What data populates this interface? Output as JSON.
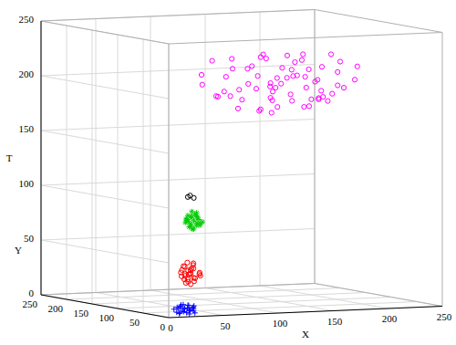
{
  "chart_data": {
    "type": "scatter3d",
    "x_label": "X",
    "y_label": "Y",
    "z_label": "T",
    "xlim": [
      0,
      250
    ],
    "ylim": [
      0,
      250
    ],
    "zlim": [
      0,
      250
    ],
    "xticks": [
      0,
      50,
      100,
      150,
      200,
      250
    ],
    "yticks": [
      0,
      50,
      100,
      150,
      200,
      250
    ],
    "zticks": [
      0,
      50,
      100,
      150,
      200,
      250
    ],
    "grid": true,
    "series": [
      {
        "color": "#0000ff",
        "marker": "plus",
        "values": [
          [
            22,
            18,
            3
          ],
          [
            27,
            21,
            6
          ],
          [
            19,
            25,
            2
          ],
          [
            31,
            17,
            8
          ],
          [
            25,
            12,
            4
          ],
          [
            17,
            20,
            7
          ],
          [
            29,
            27,
            1
          ],
          [
            24,
            23,
            9
          ],
          [
            33,
            22,
            5
          ],
          [
            21,
            14,
            6
          ],
          [
            26,
            29,
            3
          ],
          [
            18,
            16,
            8
          ],
          [
            30,
            13,
            2
          ],
          [
            23,
            26,
            7
          ],
          [
            28,
            19,
            4
          ],
          [
            20,
            22,
            1
          ],
          [
            34,
            25,
            6
          ],
          [
            16,
            24,
            5
          ],
          [
            25,
            16,
            9
          ],
          [
            32,
            20,
            3
          ],
          [
            22,
            28,
            5
          ],
          [
            27,
            11,
            7
          ],
          [
            19,
            19,
            2
          ],
          [
            29,
            23,
            8
          ],
          [
            24,
            20,
            6
          ],
          [
            26,
            15,
            1
          ],
          [
            31,
            26,
            4
          ],
          [
            21,
            21,
            9
          ]
        ]
      },
      {
        "color": "#ff0000",
        "marker": "circle",
        "values": [
          [
            27,
            15,
            38
          ],
          [
            23,
            12,
            33
          ],
          [
            31,
            18,
            42
          ],
          [
            25,
            20,
            29
          ],
          [
            20,
            14,
            45
          ],
          [
            34,
            11,
            36
          ],
          [
            28,
            22,
            40
          ],
          [
            22,
            9,
            31
          ],
          [
            30,
            16,
            47
          ],
          [
            26,
            24,
            35
          ],
          [
            19,
            17,
            39
          ],
          [
            33,
            21,
            30
          ],
          [
            24,
            7,
            43
          ],
          [
            29,
            13,
            34
          ],
          [
            21,
            19,
            41
          ],
          [
            35,
            15,
            37
          ],
          [
            27,
            10,
            46
          ],
          [
            25,
            23,
            32
          ],
          [
            32,
            8,
            39
          ],
          [
            23,
            18,
            44
          ],
          [
            28,
            17,
            28
          ],
          [
            30,
            25,
            36
          ],
          [
            20,
            11,
            38
          ],
          [
            26,
            13,
            41
          ],
          [
            33,
            19,
            33
          ],
          [
            24,
            15,
            48
          ],
          [
            29,
            20,
            37
          ],
          [
            22,
            22,
            35
          ]
        ]
      },
      {
        "color": "#00cc00",
        "marker": "star",
        "values": [
          [
            30,
            15,
            86
          ],
          [
            26,
            12,
            82
          ],
          [
            34,
            18,
            89
          ],
          [
            28,
            20,
            80
          ],
          [
            24,
            14,
            91
          ],
          [
            36,
            11,
            85
          ],
          [
            31,
            22,
            88
          ],
          [
            27,
            9,
            79
          ],
          [
            33,
            16,
            93
          ],
          [
            29,
            19,
            83
          ],
          [
            25,
            17,
            87
          ],
          [
            35,
            21,
            81
          ],
          [
            30,
            8,
            90
          ],
          [
            32,
            13,
            84
          ],
          [
            27,
            23,
            86
          ],
          [
            23,
            15,
            88
          ],
          [
            37,
            17,
            83
          ],
          [
            29,
            11,
            92
          ],
          [
            31,
            20,
            78
          ],
          [
            26,
            18,
            85
          ],
          [
            34,
            14,
            87
          ],
          [
            28,
            16,
            90
          ],
          [
            33,
            10,
            82
          ],
          [
            30,
            19,
            94
          ],
          [
            25,
            21,
            84
          ]
        ]
      },
      {
        "color": "#000000",
        "marker": "circle",
        "values": [
          [
            24,
            14,
            108
          ],
          [
            27,
            16,
            109
          ],
          [
            29,
            13,
            107
          ]
        ]
      },
      {
        "color": "#ff00ff",
        "marker": "circle",
        "values": [
          [
            95,
            60,
            190
          ],
          [
            120,
            45,
            210
          ],
          [
            150,
            80,
            185
          ],
          [
            180,
            55,
            200
          ],
          [
            205,
            70,
            215
          ],
          [
            110,
            100,
            178
          ],
          [
            140,
            120,
            222
          ],
          [
            170,
            95,
            195
          ],
          [
            200,
            130,
            188
          ],
          [
            100,
            150,
            205
          ],
          [
            130,
            155,
            218
          ],
          [
            160,
            140,
            180
          ],
          [
            190,
            160,
            212
          ],
          [
            115,
            75,
            198
          ],
          [
            145,
            50,
            225
          ],
          [
            175,
            110,
            176
          ],
          [
            125,
            130,
            192
          ],
          [
            155,
            65,
            208
          ],
          [
            185,
            85,
            183
          ],
          [
            98,
            125,
            220
          ],
          [
            135,
            90,
            201
          ],
          [
            165,
            150,
            187
          ],
          [
            195,
            100,
            224
          ],
          [
            105,
            45,
            182
          ],
          [
            138,
            140,
            196
          ],
          [
            168,
            60,
            217
          ],
          [
            198,
            145,
            179
          ],
          [
            112,
            115,
            213
          ],
          [
            142,
            105,
            186
          ],
          [
            172,
            125,
            203
          ],
          [
            202,
            90,
            194
          ],
          [
            92,
            85,
            209
          ],
          [
            122,
            60,
            177
          ],
          [
            152,
            135,
            219
          ],
          [
            182,
            70,
            191
          ],
          [
            208,
            115,
            206
          ],
          [
            118,
            160,
            184
          ],
          [
            148,
            95,
            214
          ],
          [
            178,
            150,
            199
          ],
          [
            102,
            110,
            193
          ],
          [
            132,
            70,
            181
          ],
          [
            162,
            115,
            223
          ],
          [
            192,
            125,
            197
          ],
          [
            128,
            100,
            207
          ],
          [
            158,
            45,
            189
          ],
          [
            188,
            140,
            221
          ],
          [
            108,
            135,
            186
          ],
          [
            138,
            55,
            216
          ],
          [
            168,
            85,
            179
          ],
          [
            198,
            60,
            204
          ],
          [
            96,
            140,
            197
          ],
          [
            126,
            85,
            228
          ],
          [
            156,
            125,
            193
          ],
          [
            186,
            105,
            184
          ],
          [
            116,
            50,
            202
          ],
          [
            146,
            150,
            211
          ],
          [
            176,
            75,
            188
          ],
          [
            206,
            150,
            196
          ],
          [
            134,
            110,
            174
          ],
          [
            164,
            100,
            206
          ],
          [
            194,
            80,
            219
          ],
          [
            124,
            145,
            185
          ],
          [
            154,
            110,
            198
          ],
          [
            184,
            120,
            209
          ],
          [
            114,
            90,
            215
          ],
          [
            144,
            70,
            192
          ]
        ]
      }
    ]
  }
}
